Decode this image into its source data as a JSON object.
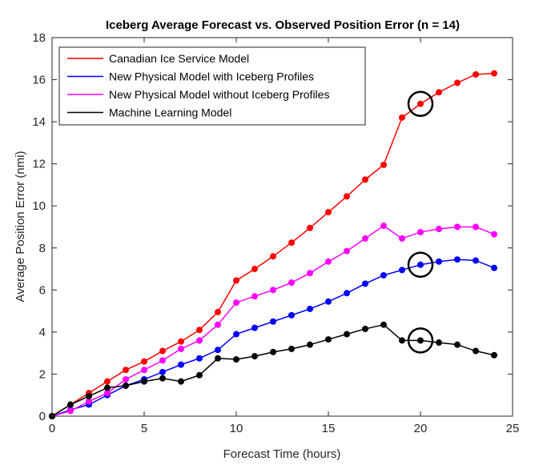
{
  "chart_data": {
    "type": "line",
    "title": "Iceberg Average Forecast vs. Observed Position Error (n = 14)",
    "xlabel": "Forecast Time (hours)",
    "ylabel": "Average Position Error (nmi)",
    "xlim": [
      0,
      25
    ],
    "ylim": [
      0,
      18
    ],
    "xticks": [
      0,
      5,
      10,
      15,
      20,
      25
    ],
    "yticks": [
      0,
      2,
      4,
      6,
      8,
      10,
      12,
      14,
      16,
      18
    ],
    "grid": false,
    "legend_position": "top-left",
    "x": [
      0,
      1,
      2,
      3,
      4,
      5,
      6,
      7,
      8,
      9,
      10,
      11,
      12,
      13,
      14,
      15,
      16,
      17,
      18,
      19,
      20,
      21,
      22,
      23,
      24
    ],
    "series": [
      {
        "name": "Canadian Ice Service Model",
        "color": "#ff0000",
        "values": [
          0,
          0.55,
          1.1,
          1.65,
          2.2,
          2.6,
          3.1,
          3.55,
          4.1,
          4.95,
          6.45,
          7.0,
          7.6,
          8.25,
          8.95,
          9.7,
          10.45,
          11.25,
          11.95,
          14.2,
          14.85,
          15.4,
          15.85,
          16.25,
          16.3
        ]
      },
      {
        "name": "New Physical Model with Iceberg Profiles",
        "color": "#0000ff",
        "values": [
          0,
          0.3,
          0.55,
          1.0,
          1.45,
          1.75,
          2.1,
          2.45,
          2.75,
          3.15,
          3.9,
          4.2,
          4.5,
          4.8,
          5.1,
          5.45,
          5.85,
          6.3,
          6.7,
          6.95,
          7.2,
          7.35,
          7.45,
          7.4,
          7.05
        ]
      },
      {
        "name": "New Physical Model without Iceberg Profiles",
        "color": "#ff00ff",
        "values": [
          0,
          0.25,
          0.7,
          1.1,
          1.75,
          2.2,
          2.65,
          3.2,
          3.6,
          4.35,
          5.4,
          5.7,
          6.0,
          6.35,
          6.8,
          7.35,
          7.85,
          8.45,
          9.05,
          8.45,
          8.75,
          8.9,
          9.0,
          9.0,
          8.65
        ]
      },
      {
        "name": "Machine Learning Model",
        "color": "#000000",
        "values": [
          0,
          0.55,
          0.95,
          1.35,
          1.45,
          1.65,
          1.8,
          1.65,
          1.95,
          2.75,
          2.7,
          2.85,
          3.05,
          3.2,
          3.4,
          3.65,
          3.9,
          4.15,
          4.35,
          3.6,
          3.6,
          3.5,
          3.4,
          3.1,
          2.9
        ]
      }
    ],
    "annotations": [
      {
        "type": "circle",
        "x": 20,
        "y": 14.85
      },
      {
        "type": "circle",
        "x": 20,
        "y": 7.2
      },
      {
        "type": "circle",
        "x": 20,
        "y": 3.6
      }
    ]
  }
}
